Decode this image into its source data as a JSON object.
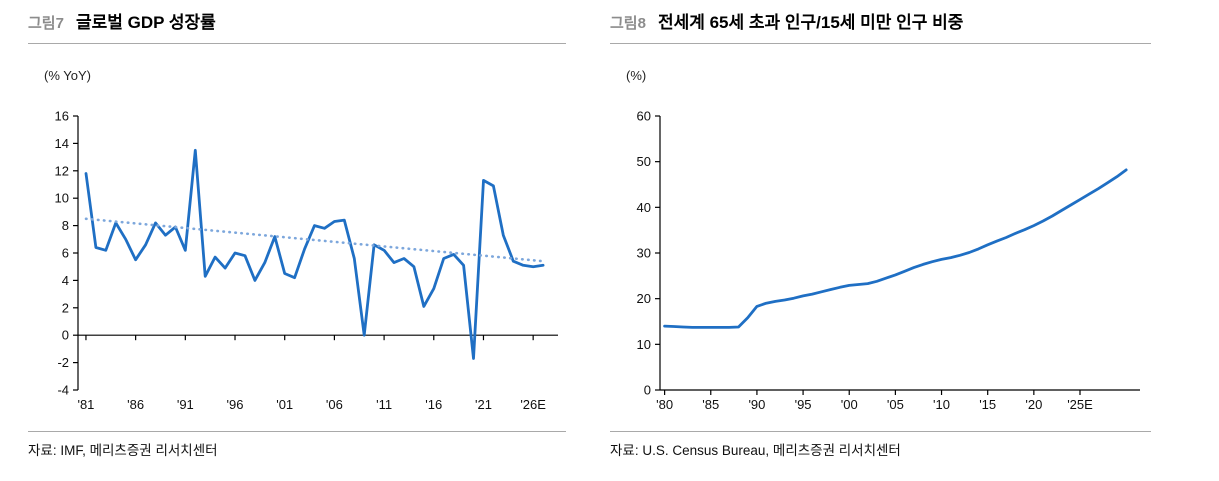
{
  "figures": [
    {
      "label": "그림7",
      "title": "글로벌 GDP 성장률",
      "unit": "(% YoY)",
      "source": "자료: IMF, 메리츠증권 리서치센터"
    },
    {
      "label": "그림8",
      "title": "전세계 65세 초과 인구/15세 미만 인구 비중",
      "unit": "(%)",
      "source": "자료: U.S. Census Bureau, 메리츠증권 리서치센터"
    }
  ],
  "colors": {
    "line_blue": "#1f6fc4",
    "trend_blue": "#7da7dc",
    "axis": "#000000"
  },
  "chart_data": [
    {
      "type": "line",
      "title": "글로벌 GDP 성장률",
      "ylabel": "(% YoY)",
      "ylim": [
        -4,
        16
      ],
      "ytick_step": 2,
      "xlim": [
        1980.2,
        2028.5
      ],
      "xticks": [
        1981,
        1986,
        1991,
        1996,
        2001,
        2006,
        2011,
        2016,
        2021,
        2026
      ],
      "xtick_labels": [
        "'81",
        "'86",
        "'91",
        "'96",
        "'01",
        "'06",
        "'11",
        "'16",
        "'21",
        "'26E"
      ],
      "grid": false,
      "legend": "none",
      "source": "자료: IMF, 메리츠증권 리서치센터",
      "series": [
        {
          "id": "gdp-growth-line",
          "name": "글로벌 GDP 성장률 (% YoY)",
          "color": "#1f6fc4",
          "width": 2.8,
          "dashed": false,
          "x": [
            1981,
            1982,
            1983,
            1984,
            1985,
            1986,
            1987,
            1988,
            1989,
            1990,
            1991,
            1992,
            1993,
            1994,
            1995,
            1996,
            1997,
            1998,
            1999,
            2000,
            2001,
            2002,
            2003,
            2004,
            2005,
            2006,
            2007,
            2008,
            2009,
            2010,
            2011,
            2012,
            2013,
            2014,
            2015,
            2016,
            2017,
            2018,
            2019,
            2020,
            2021,
            2022,
            2023,
            2024,
            2025,
            2026,
            2027
          ],
          "y": [
            11.8,
            6.4,
            6.2,
            8.2,
            7.0,
            5.5,
            6.6,
            8.2,
            7.3,
            7.9,
            6.2,
            13.5,
            4.3,
            5.7,
            4.9,
            6.0,
            5.8,
            4.0,
            5.3,
            7.2,
            4.5,
            4.2,
            6.3,
            8.0,
            7.8,
            8.3,
            8.4,
            5.6,
            0.0,
            6.6,
            6.2,
            5.3,
            5.6,
            5.0,
            2.1,
            3.4,
            5.6,
            5.9,
            5.1,
            -1.7,
            11.3,
            10.9,
            7.3,
            5.4,
            5.1,
            5.0,
            5.1
          ]
        },
        {
          "id": "gdp-trend-line",
          "name": "추세선",
          "color": "#7da7dc",
          "width": 2.6,
          "dashed": true,
          "x": [
            1981,
            2027
          ],
          "y": [
            8.5,
            5.4
          ]
        }
      ]
    },
    {
      "type": "line",
      "title": "전세계 65세 초과 인구/15세 미만 인구 비중",
      "ylabel": "(%)",
      "ylim": [
        0,
        60
      ],
      "ytick_step": 10,
      "xlim": [
        1979.5,
        2031.5
      ],
      "xticks": [
        1980,
        1985,
        1990,
        1995,
        2000,
        2005,
        2010,
        2015,
        2020,
        2025
      ],
      "xtick_labels": [
        "'80",
        "'85",
        "'90",
        "'95",
        "'00",
        "'05",
        "'10",
        "'15",
        "'20",
        "'25E"
      ],
      "grid": false,
      "legend": "none",
      "source": "자료: U.S. Census Bureau, 메리츠증권 리서치센터",
      "series": [
        {
          "id": "old-young-ratio-line",
          "name": "전세계 65세 초과 인구/15세 미만 인구 비중 (%)",
          "color": "#1f6fc4",
          "width": 2.8,
          "dashed": false,
          "x": [
            1980,
            1981,
            1982,
            1983,
            1984,
            1985,
            1986,
            1987,
            1988,
            1989,
            1990,
            1991,
            1992,
            1993,
            1994,
            1995,
            1996,
            1997,
            1998,
            1999,
            2000,
            2001,
            2002,
            2003,
            2004,
            2005,
            2006,
            2007,
            2008,
            2009,
            2010,
            2011,
            2012,
            2013,
            2014,
            2015,
            2016,
            2017,
            2018,
            2019,
            2020,
            2021,
            2022,
            2023,
            2024,
            2025,
            2026,
            2027,
            2028,
            2029,
            2030
          ],
          "y": [
            14.0,
            13.9,
            13.8,
            13.7,
            13.7,
            13.7,
            13.7,
            13.7,
            13.8,
            15.8,
            18.3,
            19.0,
            19.4,
            19.7,
            20.1,
            20.6,
            21.0,
            21.5,
            22.0,
            22.5,
            22.9,
            23.1,
            23.3,
            23.8,
            24.5,
            25.2,
            26.0,
            26.8,
            27.5,
            28.1,
            28.6,
            29.0,
            29.5,
            30.1,
            30.9,
            31.8,
            32.6,
            33.4,
            34.3,
            35.1,
            36.0,
            37.0,
            38.1,
            39.3,
            40.5,
            41.7,
            42.9,
            44.1,
            45.4,
            46.7,
            48.2
          ]
        }
      ]
    }
  ]
}
